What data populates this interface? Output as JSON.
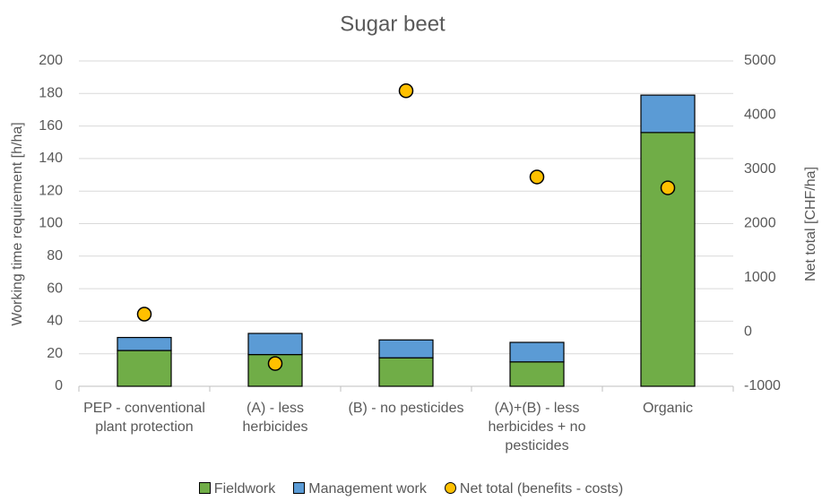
{
  "chart_data": {
    "type": "bar",
    "title": "Sugar beet",
    "categories": [
      "PEP - conventional plant protection",
      "(A) - less herbicides",
      "(B) - no pesticides",
      "(A)+(B) - less herbicides + no pesticides",
      "Organic"
    ],
    "series": [
      {
        "name": "Fieldwork",
        "color": "#70ad47",
        "values": [
          22,
          19.5,
          17.5,
          15,
          156
        ]
      },
      {
        "name": "Management work",
        "color": "#5b9bd5",
        "values": [
          8,
          13,
          11,
          12,
          23
        ]
      },
      {
        "name": "Net total (benefits - costs)",
        "color": "#ffc000",
        "axis": "y2",
        "type": "scatter",
        "values": [
          330,
          -580,
          4450,
          2860,
          2660
        ]
      }
    ],
    "ylabel": "Working time requirement [h/ha]",
    "y2label": "Net total [CHF/ha]",
    "ylim": [
      0,
      200
    ],
    "yticks": [
      0,
      20,
      40,
      60,
      80,
      100,
      120,
      140,
      160,
      180,
      200
    ],
    "y2lim": [
      -1000,
      5000
    ],
    "y2ticks": [
      -1000,
      0,
      1000,
      2000,
      3000,
      4000,
      5000
    ],
    "grid": true,
    "legend": "bottom"
  }
}
